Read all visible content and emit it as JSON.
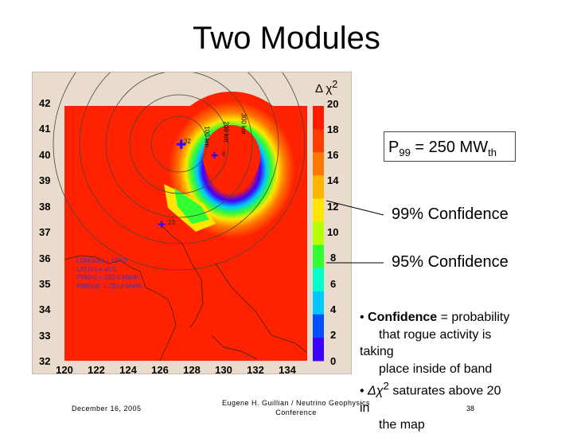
{
  "slide": {
    "title": "Two Modules",
    "p_label_base": "P",
    "p_label_sub1": "99",
    "p_label_value": " = 250 MW",
    "p_label_sub2": "th",
    "confidence_99": "99% Confidence",
    "confidence_95": "95% Confidence",
    "bullets": {
      "b1_bold": "Confidence",
      "b1_rest": " = probability",
      "b1_line2": "that rogue activity is",
      "b1_line3": "taking",
      "b1_line4": "place inside of band",
      "b2_delta": "Δχ",
      "b2_sup": "2",
      "b2_rest": " saturates above 20",
      "b2_line2": "in",
      "b2_line3": "the map"
    },
    "footer_date": "December 16, 2005",
    "footer_author": "Eugene H. Guillian / Neutrino Geophysics Conference",
    "slide_number": "38"
  },
  "map": {
    "colorbar_title": "Δ χ",
    "colorbar_title_sup": "2",
    "lat_labels": [
      "42",
      "41",
      "40",
      "39",
      "38",
      "37",
      "36",
      "35",
      "34",
      "33",
      "32"
    ],
    "lon_labels": [
      "120",
      "122",
      "124",
      "126",
      "128",
      "130",
      "132",
      "134"
    ],
    "colorbar_labels": [
      "20",
      "18",
      "16",
      "14",
      "12",
      "10",
      "8",
      "6",
      "4",
      "2",
      "0"
    ],
    "colorbar_colors": [
      "#ff1a00",
      "#ff3c00",
      "#ff7800",
      "#ffb400",
      "#ffe600",
      "#b4ff00",
      "#32ff32",
      "#00ffc8",
      "#00c8ff",
      "#0050ff",
      "#3c00ff"
    ],
    "ring_labels": [
      "100 km",
      "200 km",
      "300 km"
    ],
    "marker_23": "23",
    "marker_32": "32",
    "marker_8": "8",
    "info_lines": [
      "LONG(in) = 127.0",
      "LAT(in) = 40.5",
      "P99(in) = 250.0 MWth",
      "P99(out) = 250.0 MWth"
    ],
    "accent_red": "#ff1a00",
    "ocean_red": "#ff2200"
  }
}
